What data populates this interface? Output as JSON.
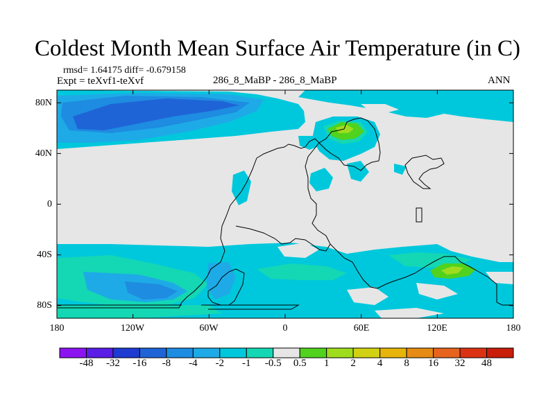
{
  "title": "Coldest Month Mean Surface Air Temperature (in C)",
  "stats": "rmsd= 1.64175 diff= -0.679158",
  "expt": "Expt = teXvf1-teXvf",
  "center_label": "286_8_MaBP - 286_8_MaBP",
  "season": "ANN",
  "chart_data": {
    "type": "heatmap",
    "title": "Coldest Month Mean Surface Air Temperature (in C)",
    "x_ticks": [
      "180",
      "120W",
      "60W",
      "0",
      "60E",
      "120E",
      "180"
    ],
    "y_ticks": [
      "80N",
      "40N",
      "0",
      "40S",
      "80S"
    ],
    "xlim": [
      -180,
      180
    ],
    "ylim": [
      -90,
      90
    ],
    "colorbar_levels": [
      "-48",
      "-32",
      "-16",
      "-8",
      "-4",
      "-2",
      "-1",
      "-0.5",
      "0.5",
      "1",
      "2",
      "4",
      "8",
      "16",
      "32",
      "48"
    ],
    "colorbar_colors": [
      "#8c14f0",
      "#5a1ee6",
      "#1e3cd2",
      "#1e64d7",
      "#1e8ce1",
      "#1eaae6",
      "#00c8dc",
      "#14d7b4",
      "#e6e6e6",
      "#50d21e",
      "#a0dc1e",
      "#d2d214",
      "#e6b40a",
      "#e68c14",
      "#e6641e",
      "#dc3214",
      "#c81e0a"
    ]
  },
  "colors": {
    "neutral": "#e6e6e6",
    "cyan": "#00c8dc",
    "teal": "#14d7b4",
    "light_blue": "#1eaae6",
    "blue": "#1e8ce1",
    "dark_blue": "#1e64d7",
    "green": "#50d21e",
    "yellow_green": "#a0dc1e"
  }
}
